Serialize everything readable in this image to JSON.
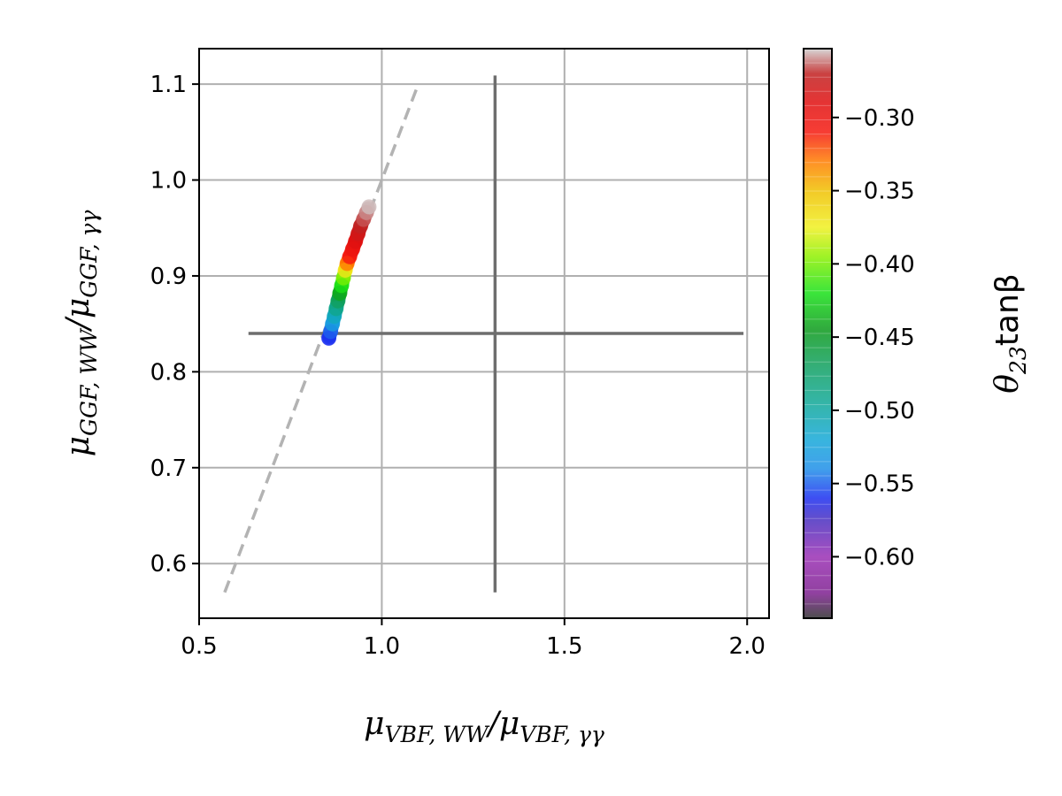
{
  "chart_data": {
    "type": "scatter",
    "title": "",
    "xlabel": {
      "base": "μ",
      "sub1": "VBF, WW",
      "mid": "/μ",
      "sub2": "VBF, γγ"
    },
    "ylabel": {
      "base": "μ",
      "sub1": "GGF, WW",
      "mid": "/μ",
      "sub2": "GGF, γγ"
    },
    "xlim": [
      0.5,
      2.06
    ],
    "ylim": [
      0.543,
      1.137
    ],
    "xticks": [
      0.5,
      1.0,
      1.5,
      2.0
    ],
    "xtick_labels": [
      "0.5",
      "1.0",
      "1.5",
      "2.0"
    ],
    "yticks": [
      0.6,
      0.7,
      0.8,
      0.9,
      1.0,
      1.1
    ],
    "ytick_labels": [
      "0.6",
      "0.7",
      "0.8",
      "0.9",
      "1.0",
      "1.1"
    ],
    "grid": true,
    "scatter_points": [
      {
        "x": 0.855,
        "y": 0.835,
        "c": -0.56
      },
      {
        "x": 0.86,
        "y": 0.842,
        "c": -0.55
      },
      {
        "x": 0.865,
        "y": 0.85,
        "c": -0.53
      },
      {
        "x": 0.87,
        "y": 0.858,
        "c": -0.51
      },
      {
        "x": 0.875,
        "y": 0.866,
        "c": -0.49
      },
      {
        "x": 0.88,
        "y": 0.874,
        "c": -0.47
      },
      {
        "x": 0.885,
        "y": 0.882,
        "c": -0.44
      },
      {
        "x": 0.89,
        "y": 0.89,
        "c": -0.42
      },
      {
        "x": 0.895,
        "y": 0.898,
        "c": -0.4
      },
      {
        "x": 0.9,
        "y": 0.906,
        "c": -0.37
      },
      {
        "x": 0.905,
        "y": 0.913,
        "c": -0.33
      },
      {
        "x": 0.912,
        "y": 0.92,
        "c": -0.31
      },
      {
        "x": 0.92,
        "y": 0.928,
        "c": -0.3
      },
      {
        "x": 0.928,
        "y": 0.936,
        "c": -0.29
      },
      {
        "x": 0.935,
        "y": 0.944,
        "c": -0.28
      },
      {
        "x": 0.942,
        "y": 0.952,
        "c": -0.27
      },
      {
        "x": 0.95,
        "y": 0.959,
        "c": -0.265
      },
      {
        "x": 0.958,
        "y": 0.966,
        "c": -0.26
      },
      {
        "x": 0.965,
        "y": 0.972,
        "c": -0.255
      }
    ],
    "reference_line": {
      "x": [
        0.57,
        1.1
      ],
      "y": [
        0.57,
        1.1
      ],
      "style": "dashed",
      "color": "#b3b3b3"
    },
    "crosshair": {
      "center": [
        1.31,
        0.84
      ],
      "x_range": [
        0.635,
        1.99
      ],
      "y_range": [
        0.57,
        1.109
      ],
      "color": "#6e6e6e"
    },
    "colorbar": {
      "label": {
        "base": "θ",
        "sub": "23",
        "rest": "tanβ"
      },
      "range": [
        -0.642,
        -0.253
      ],
      "ticks": [
        -0.3,
        -0.35,
        -0.4,
        -0.45,
        -0.5,
        -0.55,
        -0.6
      ],
      "tick_labels": [
        "−0.30",
        "−0.35",
        "−0.40",
        "−0.45",
        "−0.50",
        "−0.55",
        "−0.60"
      ],
      "colormap": [
        {
          "v": -0.642,
          "color": "#2f2f2f"
        },
        {
          "v": -0.625,
          "color": "#7d1f8f"
        },
        {
          "v": -0.6,
          "color": "#9a2fb4"
        },
        {
          "v": -0.575,
          "color": "#4a2fc0"
        },
        {
          "v": -0.56,
          "color": "#1c2ff0"
        },
        {
          "v": -0.54,
          "color": "#1f8fe8"
        },
        {
          "v": -0.52,
          "color": "#15a8d8"
        },
        {
          "v": -0.495,
          "color": "#10a898"
        },
        {
          "v": -0.47,
          "color": "#10a060"
        },
        {
          "v": -0.445,
          "color": "#0c9a1c"
        },
        {
          "v": -0.42,
          "color": "#18e018"
        },
        {
          "v": -0.395,
          "color": "#8ef000"
        },
        {
          "v": -0.375,
          "color": "#f0f020"
        },
        {
          "v": -0.35,
          "color": "#f0c000"
        },
        {
          "v": -0.33,
          "color": "#ff7c00"
        },
        {
          "v": -0.31,
          "color": "#f51a10"
        },
        {
          "v": -0.29,
          "color": "#e01010"
        },
        {
          "v": -0.27,
          "color": "#c02020"
        },
        {
          "v": -0.253,
          "color": "#d0d0d0"
        }
      ]
    }
  }
}
